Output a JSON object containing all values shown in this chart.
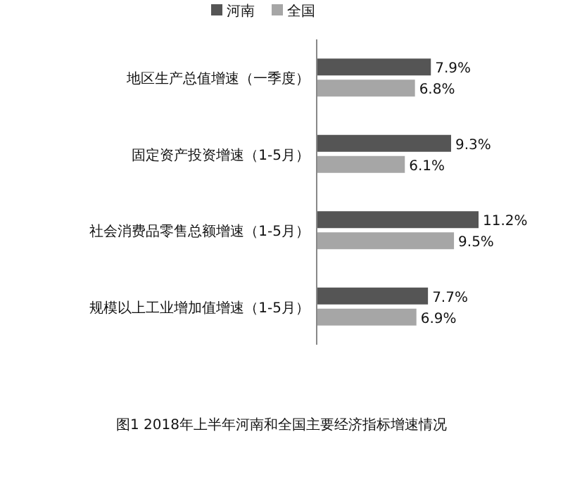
{
  "chart_data": {
    "type": "bar",
    "orientation": "horizontal",
    "title": "图1  2018年上半年河南和全国主要经济指标增速情况",
    "categories": [
      "地区生产总值增速（一季度）",
      "固定资产投资增速（1-5月）",
      "社会消费品零售总额增速（1-5月）",
      "规模以上工业增加值增速（1-5月）"
    ],
    "series": [
      {
        "name": "河南",
        "color": "#555555",
        "values": [
          7.9,
          9.3,
          11.2,
          7.7
        ],
        "value_labels": [
          "7.9%",
          "9.3%",
          "11.2%",
          "7.7%"
        ]
      },
      {
        "name": "全国",
        "color": "#a6a6a6",
        "values": [
          6.8,
          6.1,
          9.5,
          6.9
        ],
        "value_labels": [
          "6.8%",
          "6.1%",
          "9.5%",
          "6.9%"
        ]
      }
    ],
    "legend": "top"
  }
}
